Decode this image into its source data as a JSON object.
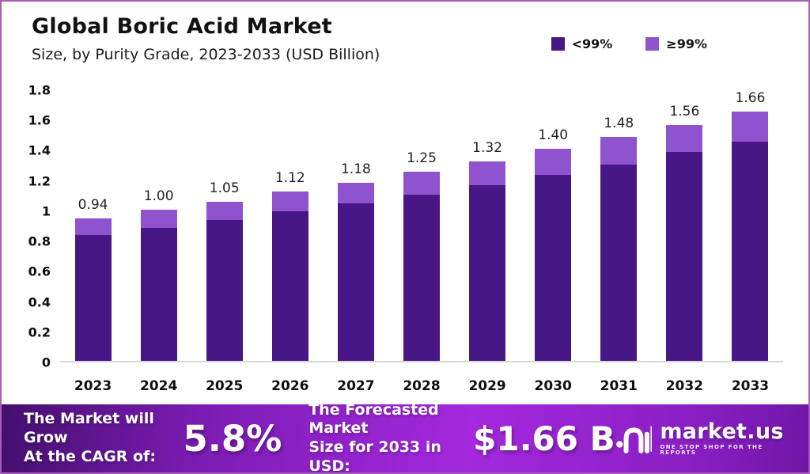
{
  "header": {
    "title": "Global Boric Acid Market",
    "subtitle": "Size, by Purity Grade, 2023-2033 (USD Billion)"
  },
  "chart_data": {
    "type": "bar",
    "stacked": true,
    "title": "Global Boric Acid Market",
    "subtitle": "Size, by Purity Grade, 2023-2033 (USD Billion)",
    "categories": [
      "2023",
      "2024",
      "2025",
      "2026",
      "2027",
      "2028",
      "2029",
      "2030",
      "2031",
      "2032",
      "2033"
    ],
    "series": [
      {
        "name": "<99%",
        "color": "#471786",
        "values": [
          0.83,
          0.88,
          0.93,
          0.99,
          1.04,
          1.1,
          1.16,
          1.23,
          1.3,
          1.38,
          1.46
        ]
      },
      {
        "name": "≥99%",
        "color": "#9053cf",
        "values": [
          0.11,
          0.12,
          0.12,
          0.13,
          0.14,
          0.15,
          0.16,
          0.17,
          0.18,
          0.18,
          0.2
        ]
      }
    ],
    "totals_labels": [
      "0.94",
      "1.00",
      "1.05",
      "1.12",
      "1.18",
      "1.25",
      "1.32",
      "1.40",
      "1.48",
      "1.56",
      "1.66"
    ],
    "xlabel": "",
    "ylabel": "",
    "ylim": [
      0,
      1.8
    ],
    "yticks": [
      "0",
      "0.2",
      "0.4",
      "0.6",
      "0.8",
      "1",
      "1.2",
      "1.4",
      "1.6",
      "1.8"
    ],
    "grid": false,
    "legend_position": "top-right"
  },
  "banner": {
    "cagr_label_line1": "The Market will Grow",
    "cagr_label_line2": "At the CAGR of:",
    "cagr_value": "5.8%",
    "forecast_label_line1": "The Forecasted Market",
    "forecast_label_line2": "Size for 2033 in USD:",
    "forecast_value": "$1.66 B",
    "brand_name": "market.us",
    "brand_tagline": "ONE STOP SHOP FOR THE REPORTS"
  },
  "colors": {
    "series_dark": "#471786",
    "series_light": "#9053cf",
    "banner_gradient_start": "#440f6d",
    "banner_gradient_mid": "#a428de",
    "banner_gradient_end": "#6f16a6",
    "page_border": "#a75cb8",
    "axis_line": "#d8d8d8"
  }
}
